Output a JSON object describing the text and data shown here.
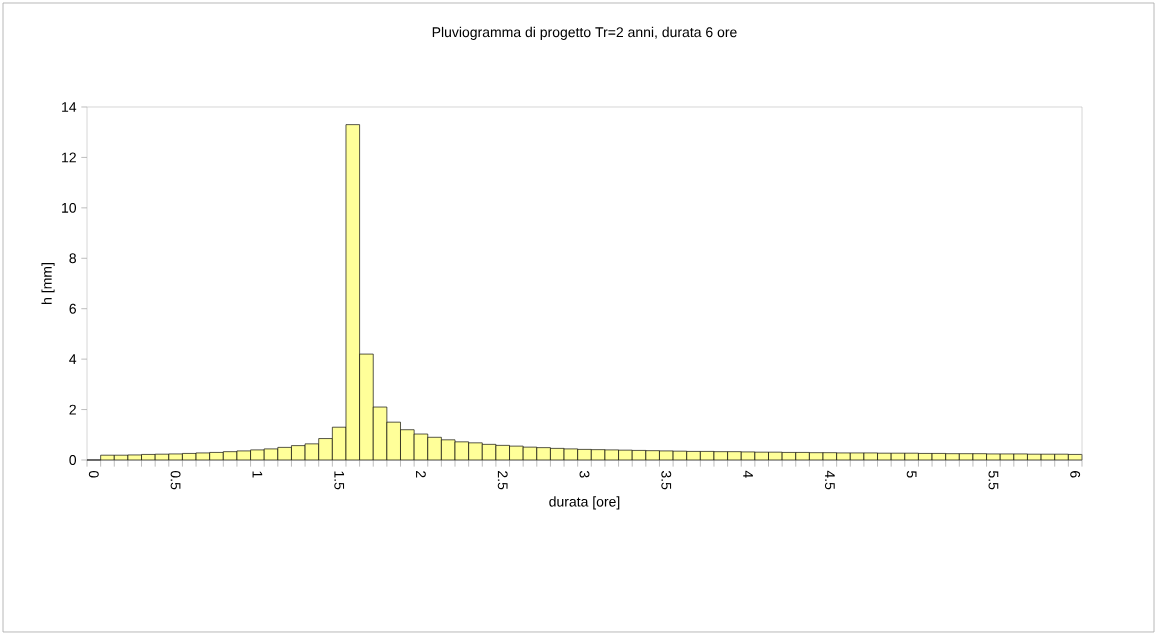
{
  "chart_data": {
    "type": "bar",
    "title": "Pluviogramma di progetto  Tr=2 anni, durata 6 ore",
    "xlabel": "durata [ore]",
    "ylabel": "h [mm]",
    "categories": [
      "0",
      null,
      null,
      null,
      null,
      null,
      "0.5",
      null,
      null,
      null,
      null,
      null,
      "1",
      null,
      null,
      null,
      null,
      null,
      "1.5",
      null,
      null,
      null,
      null,
      null,
      "2",
      null,
      null,
      null,
      null,
      null,
      "2.5",
      null,
      null,
      null,
      null,
      null,
      "3",
      null,
      null,
      null,
      null,
      null,
      "3.5",
      null,
      null,
      null,
      null,
      null,
      "4",
      null,
      null,
      null,
      null,
      null,
      "4.5",
      null,
      null,
      null,
      null,
      null,
      "5",
      null,
      null,
      null,
      null,
      null,
      "5.5",
      null,
      null,
      null,
      null,
      null,
      "6"
    ],
    "values": [
      0,
      0.19,
      0.19,
      0.2,
      0.22,
      0.23,
      0.24,
      0.26,
      0.28,
      0.3,
      0.33,
      0.36,
      0.4,
      0.44,
      0.5,
      0.57,
      0.64,
      0.85,
      1.3,
      13.3,
      4.2,
      2.1,
      1.5,
      1.2,
      1.03,
      0.9,
      0.8,
      0.72,
      0.68,
      0.62,
      0.58,
      0.55,
      0.51,
      0.49,
      0.46,
      0.44,
      0.42,
      0.41,
      0.4,
      0.39,
      0.38,
      0.37,
      0.36,
      0.35,
      0.34,
      0.34,
      0.33,
      0.33,
      0.32,
      0.31,
      0.31,
      0.3,
      0.3,
      0.29,
      0.29,
      0.28,
      0.28,
      0.28,
      0.27,
      0.27,
      0.27,
      0.26,
      0.26,
      0.25,
      0.25,
      0.25,
      0.24,
      0.24,
      0.24,
      0.23,
      0.23,
      0.23,
      0.22
    ],
    "color": "#ffff99",
    "ylim": [
      0,
      14
    ],
    "yticks": [
      0,
      2,
      4,
      6,
      8,
      10,
      12,
      14
    ]
  }
}
